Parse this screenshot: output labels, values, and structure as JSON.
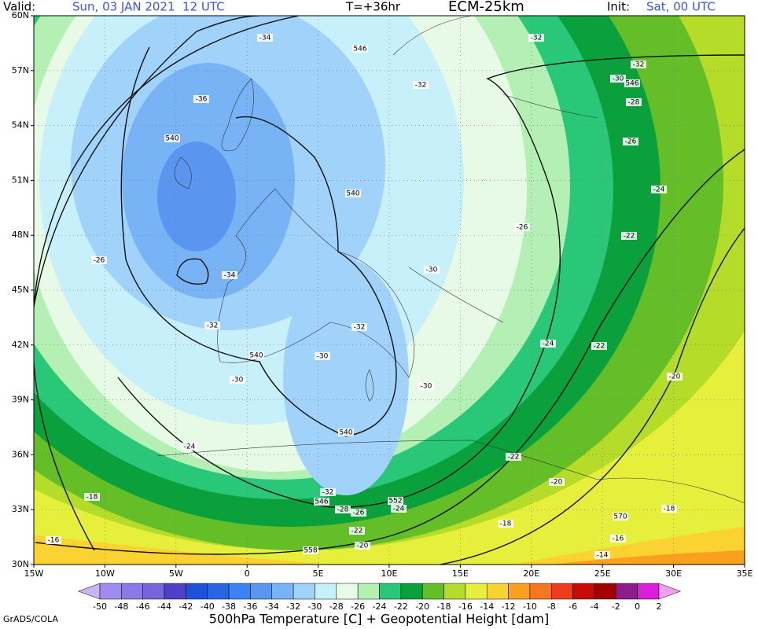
{
  "header": {
    "valid_label": "Valid:",
    "valid_time": "Sun, 03 JAN 2021  12 UTC",
    "lead": "T=+36hr",
    "model": "ECM-25km",
    "init_label": "Init:",
    "init_time": "Sat, 00 UTC"
  },
  "map": {
    "lat_labels": [
      "60N",
      "57N",
      "54N",
      "51N",
      "48N",
      "45N",
      "42N",
      "39N",
      "36N",
      "33N",
      "30N"
    ],
    "lon_labels": [
      "15W",
      "10W",
      "5W",
      "0",
      "5E",
      "10E",
      "15E",
      "20E",
      "25E",
      "30E",
      "35E"
    ],
    "contour_labels": [
      "-34",
      "546",
      "-32",
      "-32",
      "-30",
      "546",
      "-28",
      "-36",
      "-32",
      "540",
      "-26",
      "-24",
      "540",
      "-26",
      "-22",
      "-26",
      "-34",
      "-30",
      "-32",
      "-32",
      "540",
      "-30",
      "-24",
      "-22",
      "-20",
      "-30",
      "-30",
      "540",
      "-24",
      "-22",
      "-20",
      "-18",
      "-32",
      "546",
      "552",
      "-28",
      "-26",
      "-24",
      "-18",
      "570",
      "-18",
      "-22",
      "-16",
      "-20",
      "558",
      "-16",
      "-14"
    ]
  },
  "colorbar": {
    "levels": [
      -50,
      -48,
      -46,
      -44,
      -42,
      -40,
      -38,
      -36,
      -34,
      -32,
      -30,
      -28,
      -26,
      -24,
      -22,
      -20,
      -18,
      -16,
      -14,
      -12,
      -10,
      -8,
      -6,
      -4,
      -2,
      0,
      2
    ],
    "colors": [
      "#c8b4f0",
      "#a08cf0",
      "#8c78e6",
      "#7864dc",
      "#5040c8",
      "#1e50dc",
      "#2864e6",
      "#3c82f0",
      "#5a96f0",
      "#78b4f5",
      "#a0d2fa",
      "#c8f0fa",
      "#e6fae6",
      "#b4f0b4",
      "#28c878",
      "#0aa03c",
      "#64be28",
      "#b4dc28",
      "#e6f03c",
      "#fad232",
      "#faa01e",
      "#f5781e",
      "#f03c1e",
      "#c80a0a",
      "#a00000",
      "#8c1e8c",
      "#dc1edc",
      "#f0a0f0"
    ]
  },
  "footer": {
    "credit": "GrADS/COLA",
    "caption": "500hPa Temperature [C] + Geopotential Height [dam]"
  }
}
